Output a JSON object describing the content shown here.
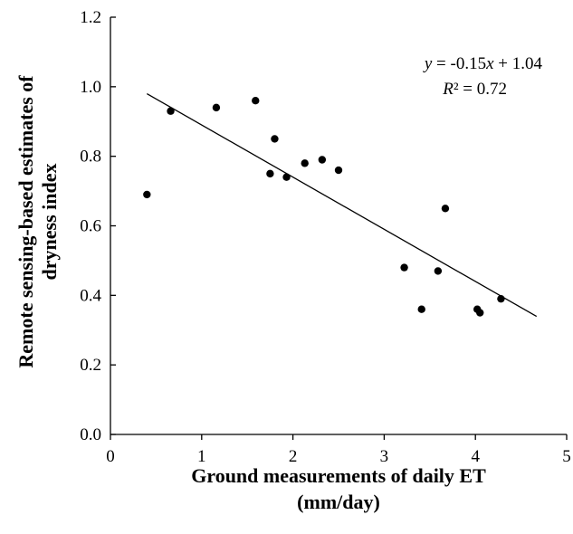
{
  "chart_data": {
    "type": "scatter",
    "title": "",
    "xlabel_line1": "Ground measurements of daily ET",
    "xlabel_line2": "(mm/day)",
    "ylabel_line1": "Remote sensing-based estimates of",
    "ylabel_line2": "dryness index",
    "xlim": [
      0,
      5
    ],
    "ylim": [
      0.0,
      1.2
    ],
    "x_ticks": [
      "0",
      "1",
      "2",
      "3",
      "4",
      "5"
    ],
    "y_ticks": [
      "0.0",
      "0.2",
      "0.4",
      "0.6",
      "0.8",
      "1.0",
      "1.2"
    ],
    "grid": false,
    "legend": false,
    "points": [
      {
        "x": 0.4,
        "y": 0.69
      },
      {
        "x": 0.66,
        "y": 0.93
      },
      {
        "x": 1.16,
        "y": 0.94
      },
      {
        "x": 1.59,
        "y": 0.96
      },
      {
        "x": 1.75,
        "y": 0.75
      },
      {
        "x": 1.8,
        "y": 0.85
      },
      {
        "x": 1.93,
        "y": 0.74
      },
      {
        "x": 2.13,
        "y": 0.78
      },
      {
        "x": 2.32,
        "y": 0.79
      },
      {
        "x": 2.5,
        "y": 0.76
      },
      {
        "x": 3.22,
        "y": 0.48
      },
      {
        "x": 3.41,
        "y": 0.36
      },
      {
        "x": 3.59,
        "y": 0.47
      },
      {
        "x": 3.67,
        "y": 0.65
      },
      {
        "x": 4.02,
        "y": 0.36
      },
      {
        "x": 4.05,
        "y": 0.35
      },
      {
        "x": 4.28,
        "y": 0.39
      }
    ],
    "trendline": {
      "slope": -0.15,
      "intercept": 1.04,
      "x_range": [
        0.4,
        4.67
      ],
      "equation_prefix": "y",
      "equation_mid": " = -0.15",
      "equation_var": "x",
      "equation_suffix": " + 1.04",
      "r2_symbol": "R",
      "r2_text": "² = 0.72"
    },
    "colors": {
      "points": "#000000",
      "line": "#000000",
      "axis": "#000000"
    }
  }
}
